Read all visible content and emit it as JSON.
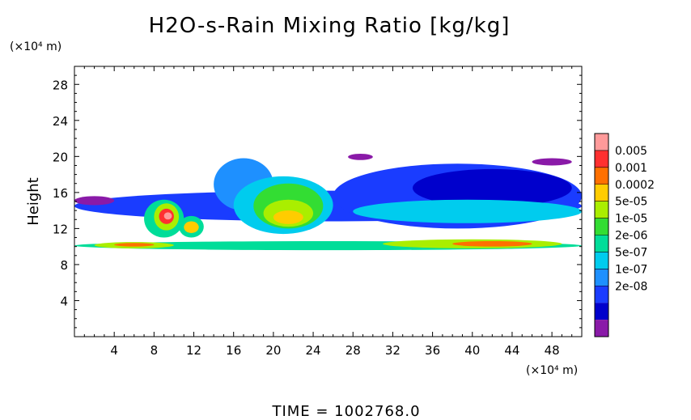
{
  "chart_data": {
    "type": "heatmap",
    "title": "H2O-s-Rain Mixing Ratio [kg/kg]",
    "xlabel": "",
    "ylabel": "Height",
    "x_unit": "(×10⁴ m)",
    "y_unit": "(×10⁴ m)",
    "xlim": [
      0,
      51
    ],
    "ylim": [
      0,
      30
    ],
    "x_ticks": [
      4,
      8,
      12,
      16,
      20,
      24,
      28,
      32,
      36,
      40,
      44,
      48
    ],
    "y_ticks": [
      4,
      8,
      12,
      16,
      20,
      24,
      28
    ],
    "x_tick_labels": [
      "4",
      "8",
      "12",
      "16",
      "20",
      "24",
      "28",
      "32",
      "36",
      "40",
      "44",
      "48"
    ],
    "y_tick_labels": [
      "4",
      "8",
      "12",
      "16",
      "20",
      "24",
      "28"
    ],
    "colorbar": {
      "labels": [
        "0.005",
        "0.001",
        "0.0002",
        "5e-05",
        "1e-05",
        "2e-06",
        "5e-07",
        "1e-07",
        "2e-08"
      ],
      "colors": [
        "#ff9a9a",
        "#ff3030",
        "#ff7000",
        "#ffcc00",
        "#aaee00",
        "#33dd33",
        "#00dd99",
        "#00ccee",
        "#1e90ff",
        "#1a3cff",
        "#0000cc",
        "#8a1aa8"
      ]
    },
    "regions": [
      {
        "level": 6,
        "x": [
          0,
          51
        ],
        "y": [
          9.6,
          10.6
        ]
      },
      {
        "level": 9,
        "x": [
          0,
          51
        ],
        "y": [
          12.8,
          16.2
        ]
      },
      {
        "level": 8,
        "x": [
          14,
          20
        ],
        "y": [
          14,
          19.8
        ]
      },
      {
        "level": 7,
        "x": [
          16,
          26
        ],
        "y": [
          11.4,
          17.8
        ]
      },
      {
        "level": 5,
        "x": [
          18,
          25
        ],
        "y": [
          12,
          17
        ]
      },
      {
        "level": 4,
        "x": [
          19,
          24
        ],
        "y": [
          12.2,
          15.2
        ]
      },
      {
        "level": 3,
        "x": [
          20,
          23
        ],
        "y": [
          12.5,
          14
        ]
      },
      {
        "level": 9,
        "x": [
          26,
          51
        ],
        "y": [
          12,
          19.2
        ]
      },
      {
        "level": 10,
        "x": [
          34,
          50
        ],
        "y": [
          14.4,
          18.6
        ]
      },
      {
        "level": 7,
        "x": [
          28,
          51
        ],
        "y": [
          12.6,
          15.2
        ]
      },
      {
        "level": 6,
        "x": [
          7,
          11
        ],
        "y": [
          11,
          15.2
        ]
      },
      {
        "level": 4,
        "x": [
          8,
          10.5
        ],
        "y": [
          11.8,
          14.8
        ]
      },
      {
        "level": 1,
        "x": [
          8.5,
          10
        ],
        "y": [
          12.5,
          14.2
        ]
      },
      {
        "level": 0,
        "x": [
          9,
          9.8
        ],
        "y": [
          13,
          13.8
        ]
      },
      {
        "level": 6,
        "x": [
          10.5,
          13
        ],
        "y": [
          11,
          13.4
        ]
      },
      {
        "level": 3,
        "x": [
          11,
          12.5
        ],
        "y": [
          11.5,
          12.8
        ]
      },
      {
        "level": 4,
        "x": [
          2,
          10
        ],
        "y": [
          9.8,
          10.5
        ]
      },
      {
        "level": 2,
        "x": [
          4,
          8
        ],
        "y": [
          10,
          10.4
        ]
      },
      {
        "level": 4,
        "x": [
          31,
          49
        ],
        "y": [
          9.8,
          10.8
        ]
      },
      {
        "level": 2,
        "x": [
          38,
          46
        ],
        "y": [
          10,
          10.6
        ]
      },
      {
        "level": 11,
        "x": [
          27.5,
          30
        ],
        "y": [
          19.6,
          20.3
        ]
      },
      {
        "level": 11,
        "x": [
          0,
          4
        ],
        "y": [
          14.6,
          15.6
        ]
      },
      {
        "level": 11,
        "x": [
          46,
          50
        ],
        "y": [
          19,
          19.8
        ]
      }
    ],
    "grid": false
  },
  "footer": {
    "label": "TIME",
    "equals": "=",
    "value": "1002768.0"
  }
}
